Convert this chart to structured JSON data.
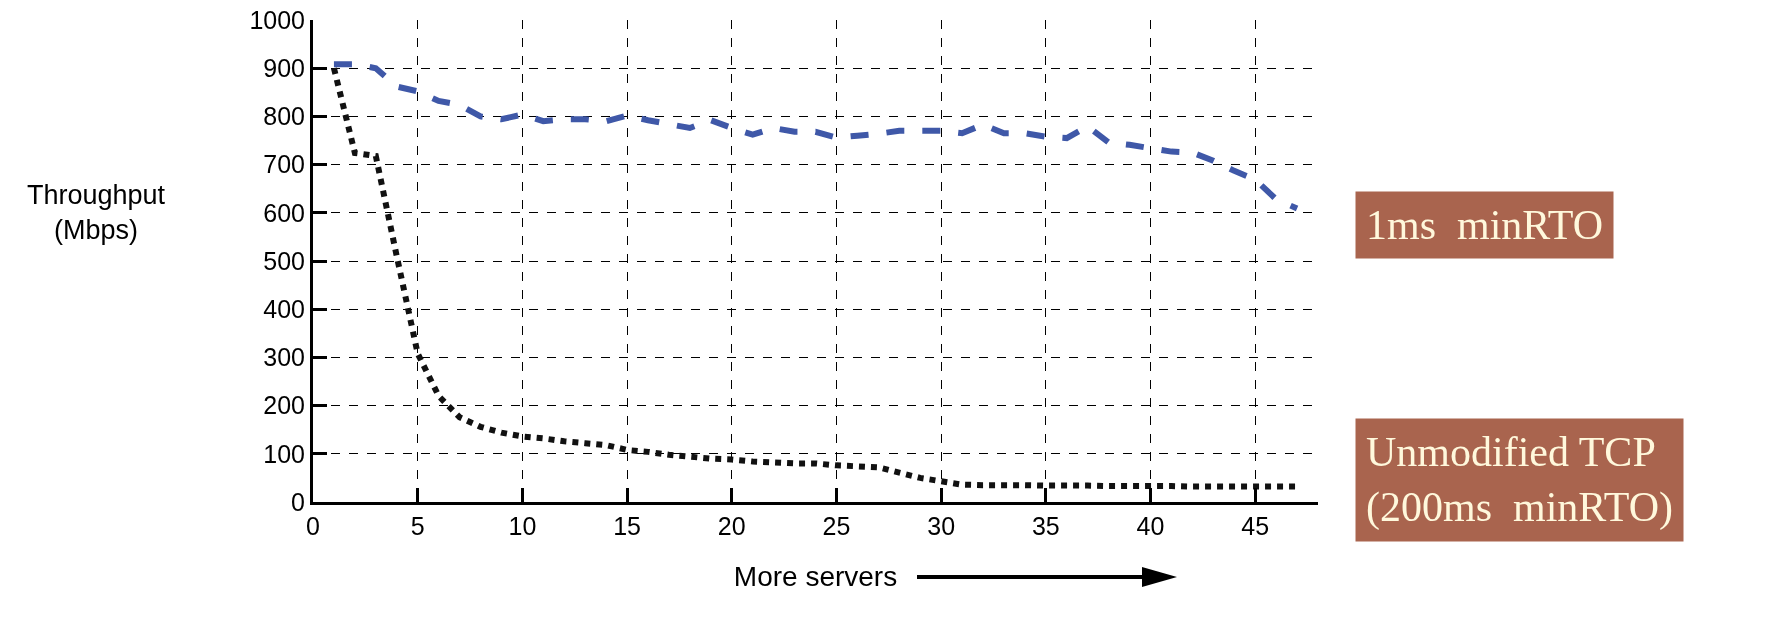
{
  "chart_data": {
    "type": "line",
    "xlabel": "More servers",
    "ylabel": "Throughput\n(Mbps)",
    "x": [
      1,
      2,
      3,
      4,
      5,
      6,
      7,
      8,
      9,
      10,
      11,
      12,
      13,
      14,
      15,
      16,
      17,
      18,
      19,
      20,
      21,
      22,
      23,
      24,
      25,
      26,
      27,
      28,
      29,
      30,
      31,
      32,
      33,
      34,
      35,
      36,
      37,
      38,
      39,
      40,
      41,
      42,
      43,
      44,
      45,
      46,
      47
    ],
    "series": [
      {
        "name": "1ms  minRTO",
        "color": "#3f58a8",
        "line_style": "dashed",
        "values": [
          908,
          908,
          900,
          862,
          852,
          832,
          824,
          800,
          794,
          804,
          790,
          794,
          794,
          790,
          802,
          792,
          784,
          776,
          792,
          776,
          762,
          776,
          768,
          768,
          756,
          760,
          764,
          770,
          770,
          770,
          765,
          783,
          765,
          765,
          758,
          755,
          779,
          746,
          741,
          734,
          727,
          725,
          708,
          687,
          669,
          628,
          609
        ]
      },
      {
        "name": "Unmodified TCP\n(200ms  minRTO)",
        "color": "#111111",
        "line_style": "dotted",
        "values": [
          900,
          724,
          718,
          510,
          308,
          220,
          176,
          156,
          144,
          136,
          132,
          126,
          122,
          118,
          108,
          104,
          98,
          94,
          90,
          88,
          84,
          82,
          80,
          80,
          76,
          74,
          72,
          61,
          50,
          43,
          36,
          35,
          35,
          35,
          34,
          34,
          34,
          33,
          33,
          33,
          33,
          32,
          32,
          32,
          32,
          32,
          32
        ]
      }
    ],
    "xlim": [
      0,
      48
    ],
    "xticks": [
      0,
      5,
      10,
      15,
      20,
      25,
      30,
      35,
      40,
      45
    ],
    "ylim": [
      0,
      1000
    ],
    "yticks": [
      0,
      100,
      200,
      300,
      400,
      500,
      600,
      700,
      800,
      900,
      1000
    ],
    "grid": true,
    "legend": false,
    "marker": "none"
  }
}
